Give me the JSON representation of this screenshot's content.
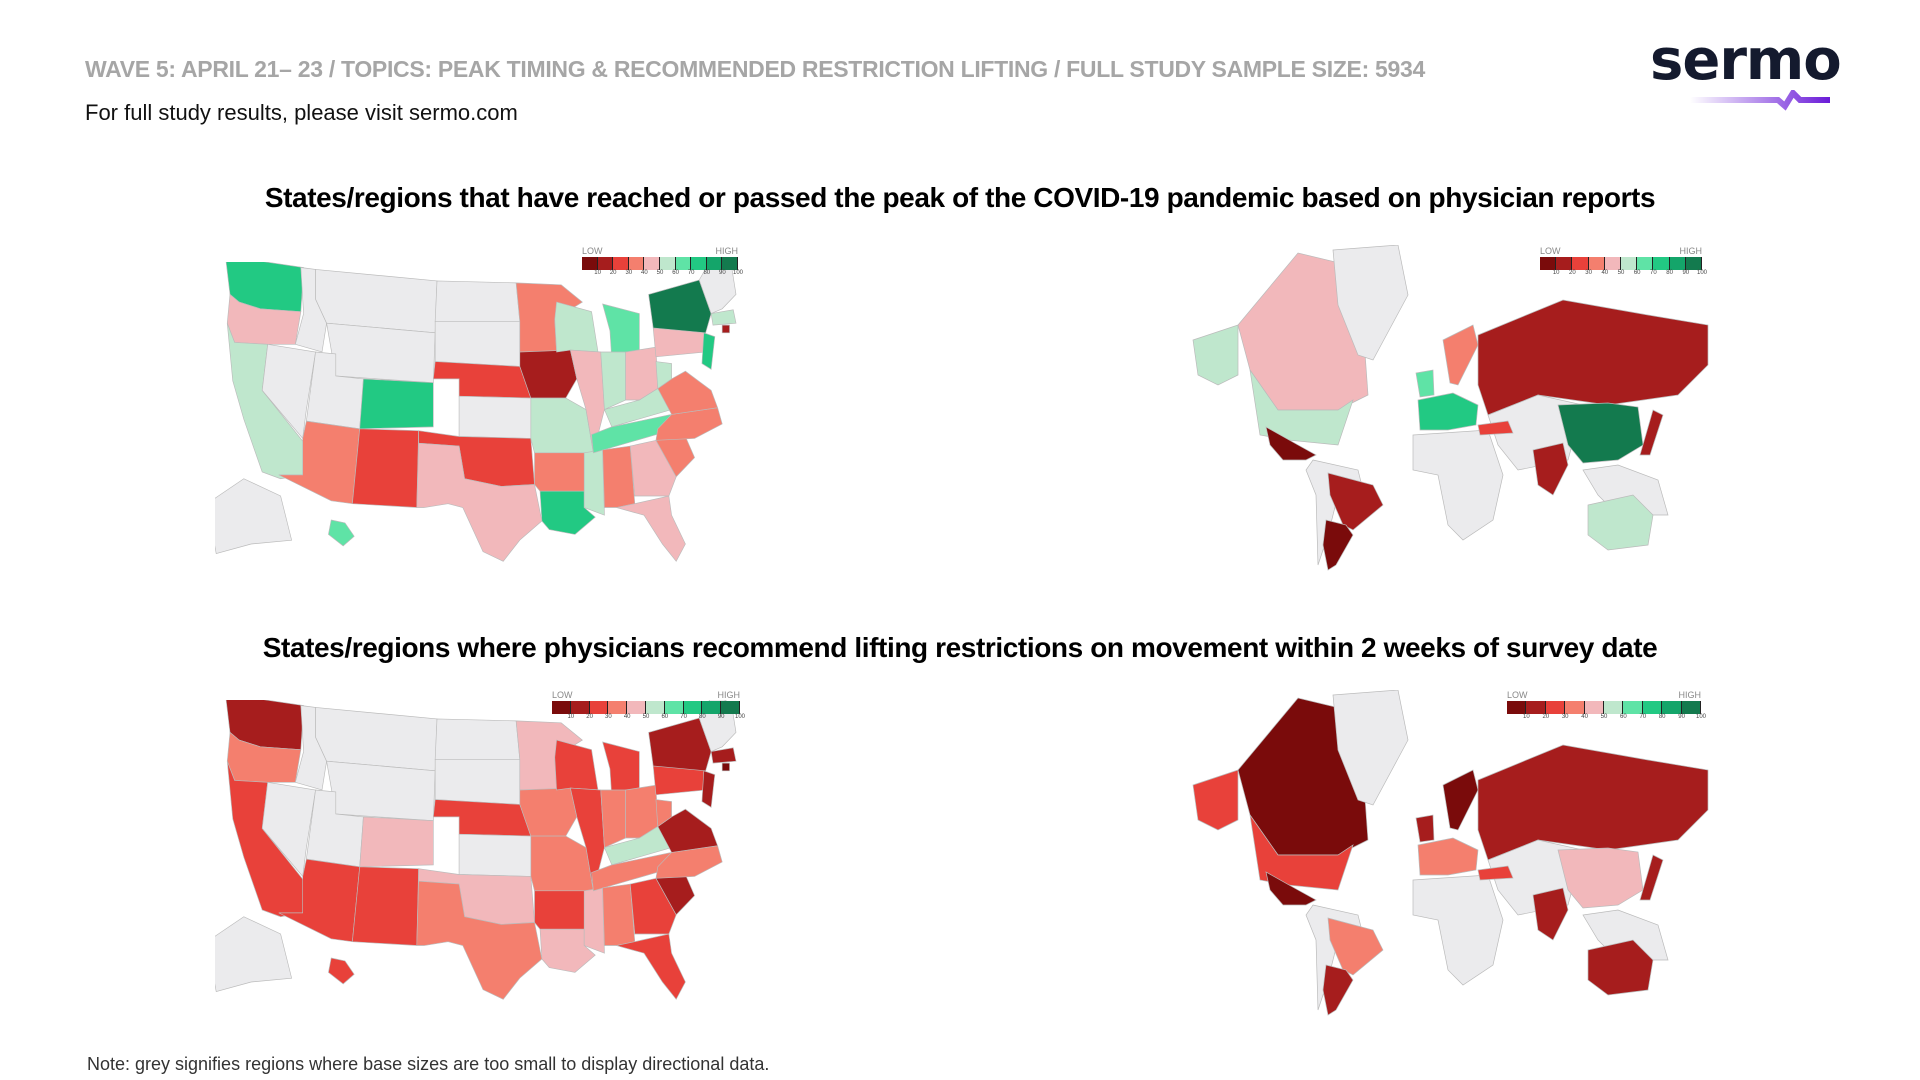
{
  "header": {
    "study_line": "WAVE 5: APRIL 21– 23 / TOPICS: PEAK TIMING & RECOMMENDED RESTRICTION LIFTING /  FULL STUDY SAMPLE SIZE: 5934",
    "subline": "For full study results, please visit sermo.com",
    "logo_text": "sermo"
  },
  "colors": {
    "grey": "#ebebed",
    "scale": [
      "#7a0b0b",
      "#a61d1d",
      "#e8413a",
      "#f47f6e",
      "#f2b8bb",
      "#bfe7cd",
      "#5fe3a6",
      "#22c983",
      "#14a56a",
      "#137a4e"
    ],
    "logo_navy": "#141a2e",
    "logo_purple": "#6a1bd8"
  },
  "legend": {
    "low": "LOW",
    "high": "HIGH",
    "ticks": [
      "10",
      "20",
      "30",
      "40",
      "50",
      "60",
      "70",
      "80",
      "90",
      "100"
    ]
  },
  "sections": [
    {
      "title": "States/regions that have reached or passed the peak of the COVID-19 pandemic based on physician reports",
      "us": {
        "WA": "green",
        "OR": "pink",
        "CA": "mint",
        "NV": "grey",
        "ID": "grey",
        "MT": "grey",
        "WY": "grey",
        "UT": "grey",
        "CO": "green",
        "AZ": "salmon",
        "NM": "red",
        "ND": "grey",
        "SD": "grey",
        "NE": "red",
        "KS": "grey",
        "OK": "red",
        "TX": "pink",
        "MN": "salmon",
        "IA": "darkred",
        "MO": "mint",
        "AR": "salmon",
        "LA": "green",
        "WI": "mint",
        "IL": "pink",
        "MS": "mint",
        "MI": "lightgreen",
        "IN": "mint",
        "OH": "pink",
        "KY": "mint",
        "TN": "lightgreen",
        "AL": "salmon",
        "GA": "pink",
        "FL": "pink",
        "SC": "salmon",
        "NC": "salmon",
        "VA": "salmon",
        "WV": "mint",
        "PA": "pink",
        "NY": "darkgreen",
        "NJ": "green",
        "NE_states": "grey",
        "MA": "mint",
        "RI": "darkred",
        "AK": "grey",
        "HI": "lightgreen"
      },
      "world": {
        "Canada": "pink",
        "Alaska": "mint",
        "Greenland": "grey",
        "USA": "mint",
        "Mexico": "maroon",
        "SouthAmerica": "grey",
        "Brazil": "darkred",
        "Argentina": "maroon",
        "Africa": "grey",
        "Europe": "green",
        "UK": "lightgreen",
        "Scandinavia": "salmon",
        "Russia": "darkred",
        "MiddleEast": "grey",
        "Turkey": "red",
        "India": "darkred",
        "China": "darkgreen",
        "Japan": "darkred",
        "SEAsia": "grey",
        "Australia": "mint"
      }
    },
    {
      "title": "States/regions where physicians recommend lifting restrictions on movement within 2 weeks of survey date",
      "us": {
        "WA": "darkred",
        "OR": "salmon",
        "CA": "red",
        "NV": "grey",
        "ID": "grey",
        "MT": "grey",
        "WY": "grey",
        "UT": "grey",
        "CO": "pink",
        "AZ": "red",
        "NM": "red",
        "ND": "grey",
        "SD": "grey",
        "NE": "red",
        "KS": "grey",
        "OK": "pink",
        "TX": "salmon",
        "MN": "pink",
        "IA": "salmon",
        "MO": "salmon",
        "AR": "red",
        "LA": "pink",
        "WI": "red",
        "IL": "red",
        "MS": "pink",
        "MI": "red",
        "IN": "salmon",
        "OH": "salmon",
        "KY": "mint",
        "TN": "salmon",
        "AL": "salmon",
        "GA": "red",
        "FL": "red",
        "SC": "darkred",
        "NC": "salmon",
        "VA": "darkred",
        "WV": "salmon",
        "PA": "red",
        "NY": "darkred",
        "NJ": "darkred",
        "NE_states": "grey",
        "MA": "darkred",
        "RI": "maroon",
        "AK": "grey",
        "HI": "red"
      },
      "world": {
        "Canada": "maroon",
        "Alaska": "red",
        "Greenland": "grey",
        "USA": "red",
        "Mexico": "maroon",
        "SouthAmerica": "grey",
        "Brazil": "salmon",
        "Argentina": "darkred",
        "Africa": "grey",
        "Europe": "salmon",
        "UK": "darkred",
        "Scandinavia": "maroon",
        "Russia": "darkred",
        "MiddleEast": "grey",
        "Turkey": "red",
        "India": "darkred",
        "China": "pink",
        "Japan": "darkred",
        "SEAsia": "grey",
        "Australia": "darkred"
      }
    }
  ],
  "note": "Note:  grey signifies regions where base sizes are too small to display directional data."
}
